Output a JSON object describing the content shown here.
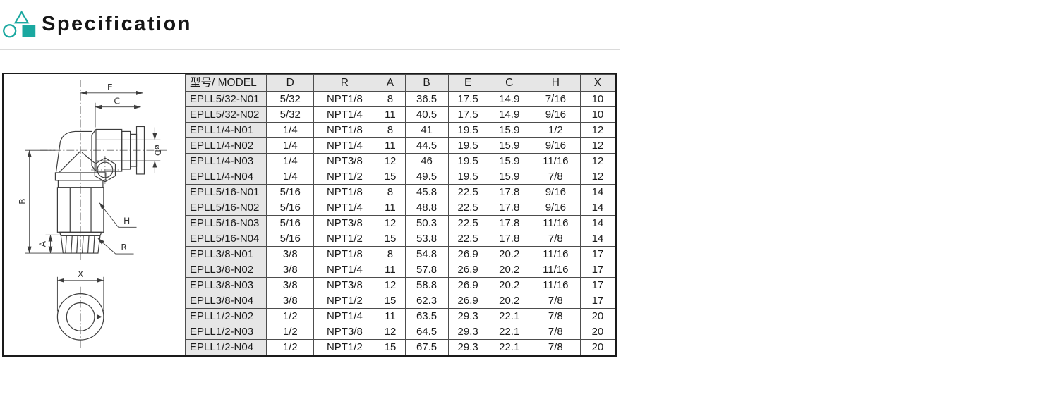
{
  "page": {
    "title": "Specification"
  },
  "icon": {
    "name": "geometric-shapes-logo",
    "color": "#1aa8a0"
  },
  "colors": {
    "divider": "#dadada",
    "table_grid": "#4d4d4d",
    "table_frame": "#1a1a1a",
    "header_cell_bg": "#e6e6e6",
    "line_art": "#3c3c3c"
  },
  "drawing": {
    "description": "Technical drawing of elbow push-in pneumatic fitting: side view with dimensions and bottom view",
    "labels": {
      "E": "E",
      "C": "C",
      "diameter": "øD",
      "B": "B",
      "A": "A",
      "H": "H",
      "R": "R",
      "X": "X"
    }
  },
  "table": {
    "columns": [
      "型号/ MODEL",
      "D",
      "R",
      "A",
      "B",
      "E",
      "C",
      "H",
      "X"
    ],
    "rows": [
      [
        "EPLL5/32-N01",
        "5/32",
        "NPT1/8",
        "8",
        "36.5",
        "17.5",
        "14.9",
        "7/16",
        "10"
      ],
      [
        "EPLL5/32-N02",
        "5/32",
        "NPT1/4",
        "11",
        "40.5",
        "17.5",
        "14.9",
        "9/16",
        "10"
      ],
      [
        "EPLL1/4-N01",
        "1/4",
        "NPT1/8",
        "8",
        "41",
        "19.5",
        "15.9",
        "1/2",
        "12"
      ],
      [
        "EPLL1/4-N02",
        "1/4",
        "NPT1/4",
        "11",
        "44.5",
        "19.5",
        "15.9",
        "9/16",
        "12"
      ],
      [
        "EPLL1/4-N03",
        "1/4",
        "NPT3/8",
        "12",
        "46",
        "19.5",
        "15.9",
        "11/16",
        "12"
      ],
      [
        "EPLL1/4-N04",
        "1/4",
        "NPT1/2",
        "15",
        "49.5",
        "19.5",
        "15.9",
        "7/8",
        "12"
      ],
      [
        "EPLL5/16-N01",
        "5/16",
        "NPT1/8",
        "8",
        "45.8",
        "22.5",
        "17.8",
        "9/16",
        "14"
      ],
      [
        "EPLL5/16-N02",
        "5/16",
        "NPT1/4",
        "11",
        "48.8",
        "22.5",
        "17.8",
        "9/16",
        "14"
      ],
      [
        "EPLL5/16-N03",
        "5/16",
        "NPT3/8",
        "12",
        "50.3",
        "22.5",
        "17.8",
        "11/16",
        "14"
      ],
      [
        "EPLL5/16-N04",
        "5/16",
        "NPT1/2",
        "15",
        "53.8",
        "22.5",
        "17.8",
        "7/8",
        "14"
      ],
      [
        "EPLL3/8-N01",
        "3/8",
        "NPT1/8",
        "8",
        "54.8",
        "26.9",
        "20.2",
        "11/16",
        "17"
      ],
      [
        "EPLL3/8-N02",
        "3/8",
        "NPT1/4",
        "11",
        "57.8",
        "26.9",
        "20.2",
        "11/16",
        "17"
      ],
      [
        "EPLL3/8-N03",
        "3/8",
        "NPT3/8",
        "12",
        "58.8",
        "26.9",
        "20.2",
        "11/16",
        "17"
      ],
      [
        "EPLL3/8-N04",
        "3/8",
        "NPT1/2",
        "15",
        "62.3",
        "26.9",
        "20.2",
        "7/8",
        "17"
      ],
      [
        "EPLL1/2-N02",
        "1/2",
        "NPT1/4",
        "11",
        "63.5",
        "29.3",
        "22.1",
        "7/8",
        "20"
      ],
      [
        "EPLL1/2-N03",
        "1/2",
        "NPT3/8",
        "12",
        "64.5",
        "29.3",
        "22.1",
        "7/8",
        "20"
      ],
      [
        "EPLL1/2-N04",
        "1/2",
        "NPT1/2",
        "15",
        "67.5",
        "29.3",
        "22.1",
        "7/8",
        "20"
      ]
    ]
  }
}
